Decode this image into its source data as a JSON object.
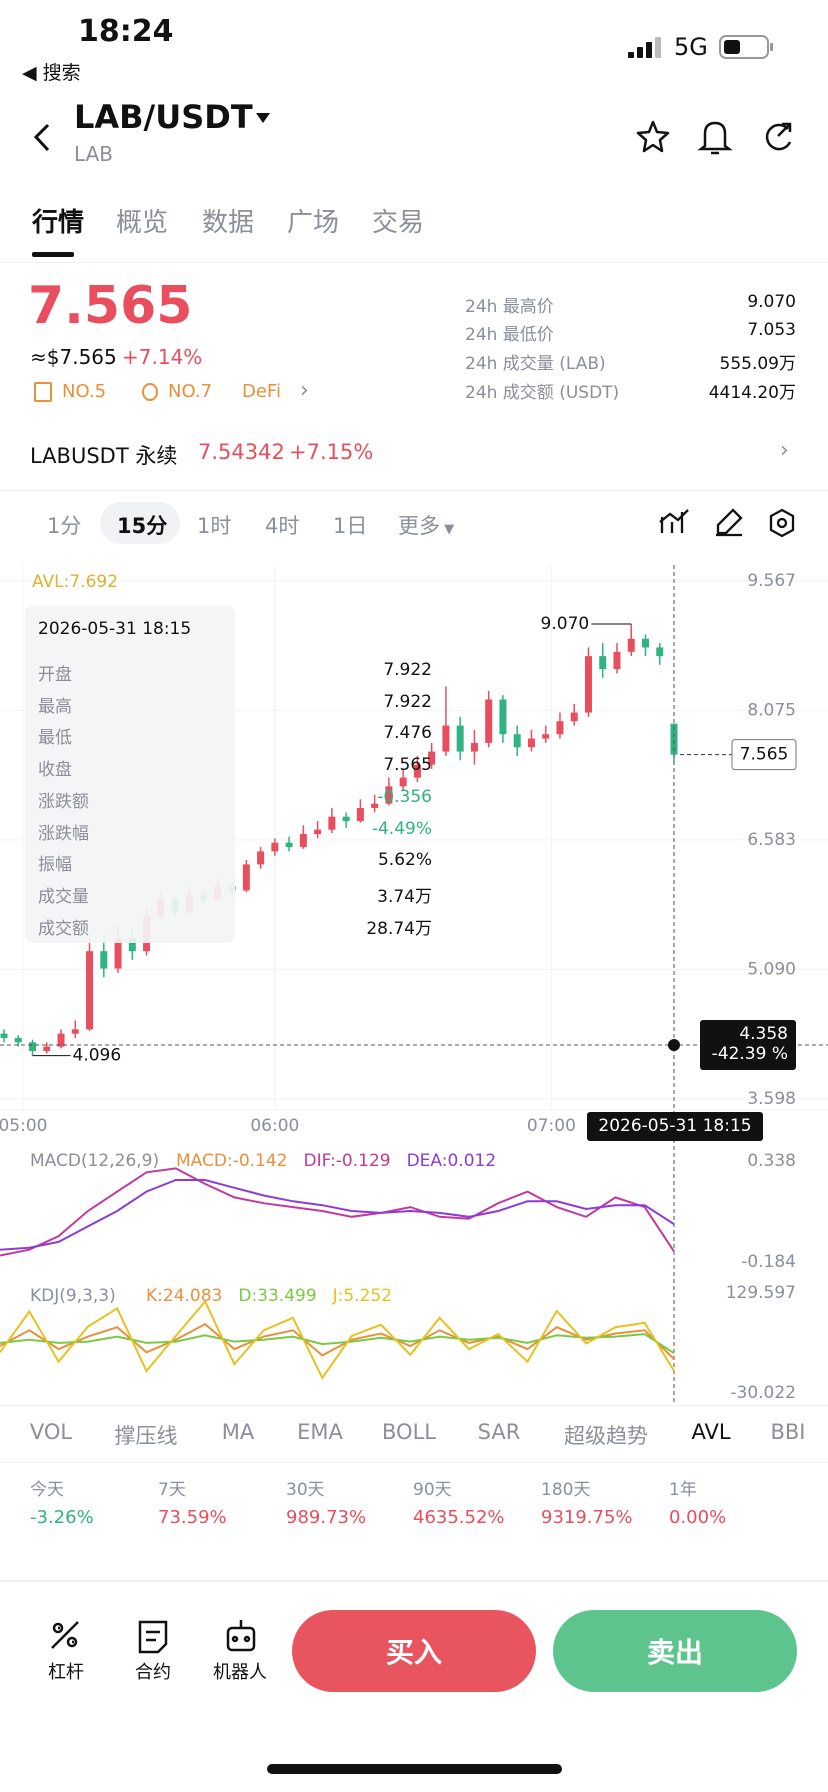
{
  "status": {
    "time": "18:24",
    "back": "◀ 搜索",
    "network": "5G"
  },
  "header": {
    "pair": "LAB/USDT",
    "base": "LAB"
  },
  "tabs": [
    "行情",
    "概览",
    "数据",
    "广场",
    "交易"
  ],
  "price": {
    "last": "7.565",
    "usd": "≈$7.565",
    "change": "+7.14%",
    "tags": [
      "NO.5",
      "NO.7",
      "DeFi"
    ]
  },
  "stats": [
    [
      "24h 最高价",
      "9.070"
    ],
    [
      "24h 最低价",
      "7.053"
    ],
    [
      "24h 成交量 (LAB)",
      "555.09万"
    ],
    [
      "24h 成交额 (USDT)",
      "4414.20万"
    ]
  ],
  "perp": {
    "name": "LABUSDT 永续",
    "price": "7.54342",
    "change": "+7.15%"
  },
  "intervals": [
    "1分",
    "15分",
    "1时",
    "4时",
    "1日",
    "更多"
  ],
  "tooltip": {
    "time": "2026-05-31 18:15",
    "rows": [
      [
        "开盘",
        "7.922"
      ],
      [
        "最高",
        "7.922"
      ],
      [
        "最低",
        "7.476"
      ],
      [
        "收盘",
        "7.565"
      ],
      [
        "涨跌额",
        "-0.356"
      ],
      [
        "涨跌幅",
        "-4.49%"
      ],
      [
        "振幅",
        "5.62%"
      ],
      [
        "成交量",
        "3.74万"
      ],
      [
        "成交额",
        "28.74万"
      ]
    ]
  },
  "crosshair": {
    "time": "2026-05-31 18:15",
    "price": "4.358",
    "percent": "-42.39 %"
  },
  "chart_data": [
    {
      "type": "candlestick",
      "indicator_label": "AVL:7.692",
      "high_label": "9.070",
      "low_label": "4.096",
      "last_label": "7.565",
      "up_color": "#e84e5d",
      "down_color": "#2fb380",
      "candles": [
        [
          4.35,
          4.4,
          4.25,
          4.3
        ],
        [
          4.3,
          4.33,
          4.2,
          4.25
        ],
        [
          4.25,
          4.28,
          4.096,
          4.15
        ],
        [
          4.15,
          4.25,
          4.12,
          4.2
        ],
        [
          4.2,
          4.4,
          4.18,
          4.35
        ],
        [
          4.35,
          4.5,
          4.3,
          4.4
        ],
        [
          4.4,
          5.45,
          4.38,
          5.3
        ],
        [
          5.3,
          5.5,
          5.0,
          5.1
        ],
        [
          5.1,
          5.6,
          5.05,
          5.45
        ],
        [
          5.45,
          5.55,
          5.2,
          5.3
        ],
        [
          5.3,
          5.8,
          5.25,
          5.7
        ],
        [
          5.7,
          6.0,
          5.65,
          5.9
        ],
        [
          5.9,
          5.95,
          5.7,
          5.75
        ],
        [
          5.75,
          6.05,
          5.72,
          5.95
        ],
        [
          5.95,
          6.0,
          5.85,
          5.9
        ],
        [
          5.9,
          6.15,
          5.88,
          6.05
        ],
        [
          6.05,
          6.1,
          5.95,
          6.0
        ],
        [
          6.0,
          6.35,
          5.98,
          6.3
        ],
        [
          6.3,
          6.5,
          6.25,
          6.45
        ],
        [
          6.45,
          6.6,
          6.4,
          6.55
        ],
        [
          6.55,
          6.62,
          6.45,
          6.5
        ],
        [
          6.5,
          6.75,
          6.48,
          6.65
        ],
        [
          6.65,
          6.8,
          6.6,
          6.7
        ],
        [
          6.7,
          6.95,
          6.66,
          6.85
        ],
        [
          6.85,
          6.9,
          6.72,
          6.8
        ],
        [
          6.8,
          7.05,
          6.78,
          6.95
        ],
        [
          6.95,
          7.1,
          6.9,
          7.0
        ],
        [
          7.0,
          7.3,
          6.98,
          7.2
        ],
        [
          7.2,
          7.4,
          7.15,
          7.3
        ],
        [
          7.3,
          7.55,
          7.25,
          7.45
        ],
        [
          7.45,
          7.7,
          7.4,
          7.6
        ],
        [
          7.6,
          8.35,
          7.55,
          7.9
        ],
        [
          7.9,
          8.0,
          7.5,
          7.6
        ],
        [
          7.6,
          7.85,
          7.45,
          7.7
        ],
        [
          7.7,
          8.3,
          7.65,
          8.2
        ],
        [
          8.2,
          8.25,
          7.7,
          7.8
        ],
        [
          7.8,
          7.9,
          7.55,
          7.65
        ],
        [
          7.65,
          7.85,
          7.6,
          7.75
        ],
        [
          7.75,
          7.9,
          7.7,
          7.8
        ],
        [
          7.8,
          8.05,
          7.75,
          7.95
        ],
        [
          7.95,
          8.15,
          7.9,
          8.05
        ],
        [
          8.05,
          8.8,
          8.0,
          8.7
        ],
        [
          8.7,
          8.85,
          8.45,
          8.55
        ],
        [
          8.55,
          8.85,
          8.5,
          8.75
        ],
        [
          8.75,
          9.07,
          8.7,
          8.9
        ],
        [
          8.9,
          8.95,
          8.7,
          8.8
        ],
        [
          8.8,
          8.85,
          8.6,
          8.7
        ],
        [
          7.922,
          7.922,
          7.476,
          7.565
        ]
      ],
      "xlim": [
        0,
        47
      ],
      "xticks": [
        {
          "value": 1.33,
          "label": "05:00"
        },
        {
          "value": 19,
          "label": "06:00"
        },
        {
          "value": 38.4,
          "label": "07:00"
        }
      ],
      "ylim": [
        3.47,
        9.75
      ],
      "yticks": [
        9.567,
        8.075,
        6.583,
        {
          "value": 5.09,
          "label": "5.090"
        },
        3.598
      ],
      "grid": true
    },
    {
      "type": "line",
      "title": "MACD(12,26,9)",
      "legend": [
        {
          "text": "MACD:-0.142",
          "color": "#e8913a"
        },
        {
          "text": "DIF:-0.129",
          "color": "#c2399c"
        },
        {
          "text": "DEA:0.012",
          "color": "#8e3bd6"
        }
      ],
      "series": [
        {
          "color": "#c2399c",
          "values": [
            -0.15,
            -0.12,
            -0.05,
            0.08,
            0.18,
            0.28,
            0.3,
            0.22,
            0.15,
            0.12,
            0.1,
            0.08,
            0.05,
            0.07,
            0.1,
            0.05,
            0.04,
            0.12,
            0.18,
            0.1,
            0.05,
            0.15,
            0.1,
            -0.129
          ]
        },
        {
          "color": "#8e3bd6",
          "values": [
            -0.12,
            -0.11,
            -0.08,
            0.0,
            0.08,
            0.18,
            0.24,
            0.24,
            0.2,
            0.16,
            0.13,
            0.11,
            0.08,
            0.07,
            0.08,
            0.07,
            0.05,
            0.08,
            0.13,
            0.13,
            0.09,
            0.11,
            0.11,
            0.012
          ]
        }
      ],
      "ylim": [
        -0.251,
        0.421
      ],
      "yticks": [
        0.338,
        -0.184
      ]
    },
    {
      "type": "line",
      "title": "KDJ(9,3,3)",
      "legend": [
        {
          "text": "K:24.083",
          "color": "#e8913a"
        },
        {
          "text": "D:33.499",
          "color": "#7ac943"
        },
        {
          "text": "J:5.252",
          "color": "#e8c020"
        }
      ],
      "series": [
        {
          "color": "#e8913a",
          "values": [
            45,
            70,
            40,
            60,
            75,
            35,
            55,
            80,
            40,
            60,
            70,
            30,
            55,
            65,
            45,
            70,
            50,
            60,
            40,
            75,
            55,
            65,
            70,
            24.083
          ]
        },
        {
          "color": "#7ac943",
          "values": [
            50,
            55,
            50,
            52,
            60,
            50,
            52,
            62,
            52,
            55,
            60,
            48,
            52,
            58,
            52,
            60,
            55,
            58,
            50,
            62,
            58,
            60,
            64,
            33.499
          ]
        },
        {
          "color": "#e8c020",
          "values": [
            35,
            100,
            20,
            76,
            105,
            5,
            61,
            116,
            16,
            70,
            90,
            -6,
            61,
            79,
            31,
            90,
            40,
            64,
            20,
            101,
            49,
            75,
            82,
            5.252
          ]
        }
      ],
      "ylim": [
        -49.2,
        150.35
      ],
      "yticks": [
        129.597,
        -30.022
      ]
    }
  ],
  "indicators": [
    "VOL",
    "撑压线",
    "MA",
    "EMA",
    "BOLL",
    "SAR",
    "超级趋势",
    "AVL",
    "BBI"
  ],
  "returns": [
    [
      "今天",
      "-3.26%"
    ],
    [
      "7天",
      "73.59%"
    ],
    [
      "30天",
      "989.73%"
    ],
    [
      "90天",
      "4635.52%"
    ],
    [
      "180天",
      "9319.75%"
    ],
    [
      "1年",
      "0.00%"
    ]
  ],
  "bottom": {
    "tools": [
      "杠杆",
      "合约",
      "机器人"
    ],
    "buy": "买入",
    "sell": "卖出"
  }
}
